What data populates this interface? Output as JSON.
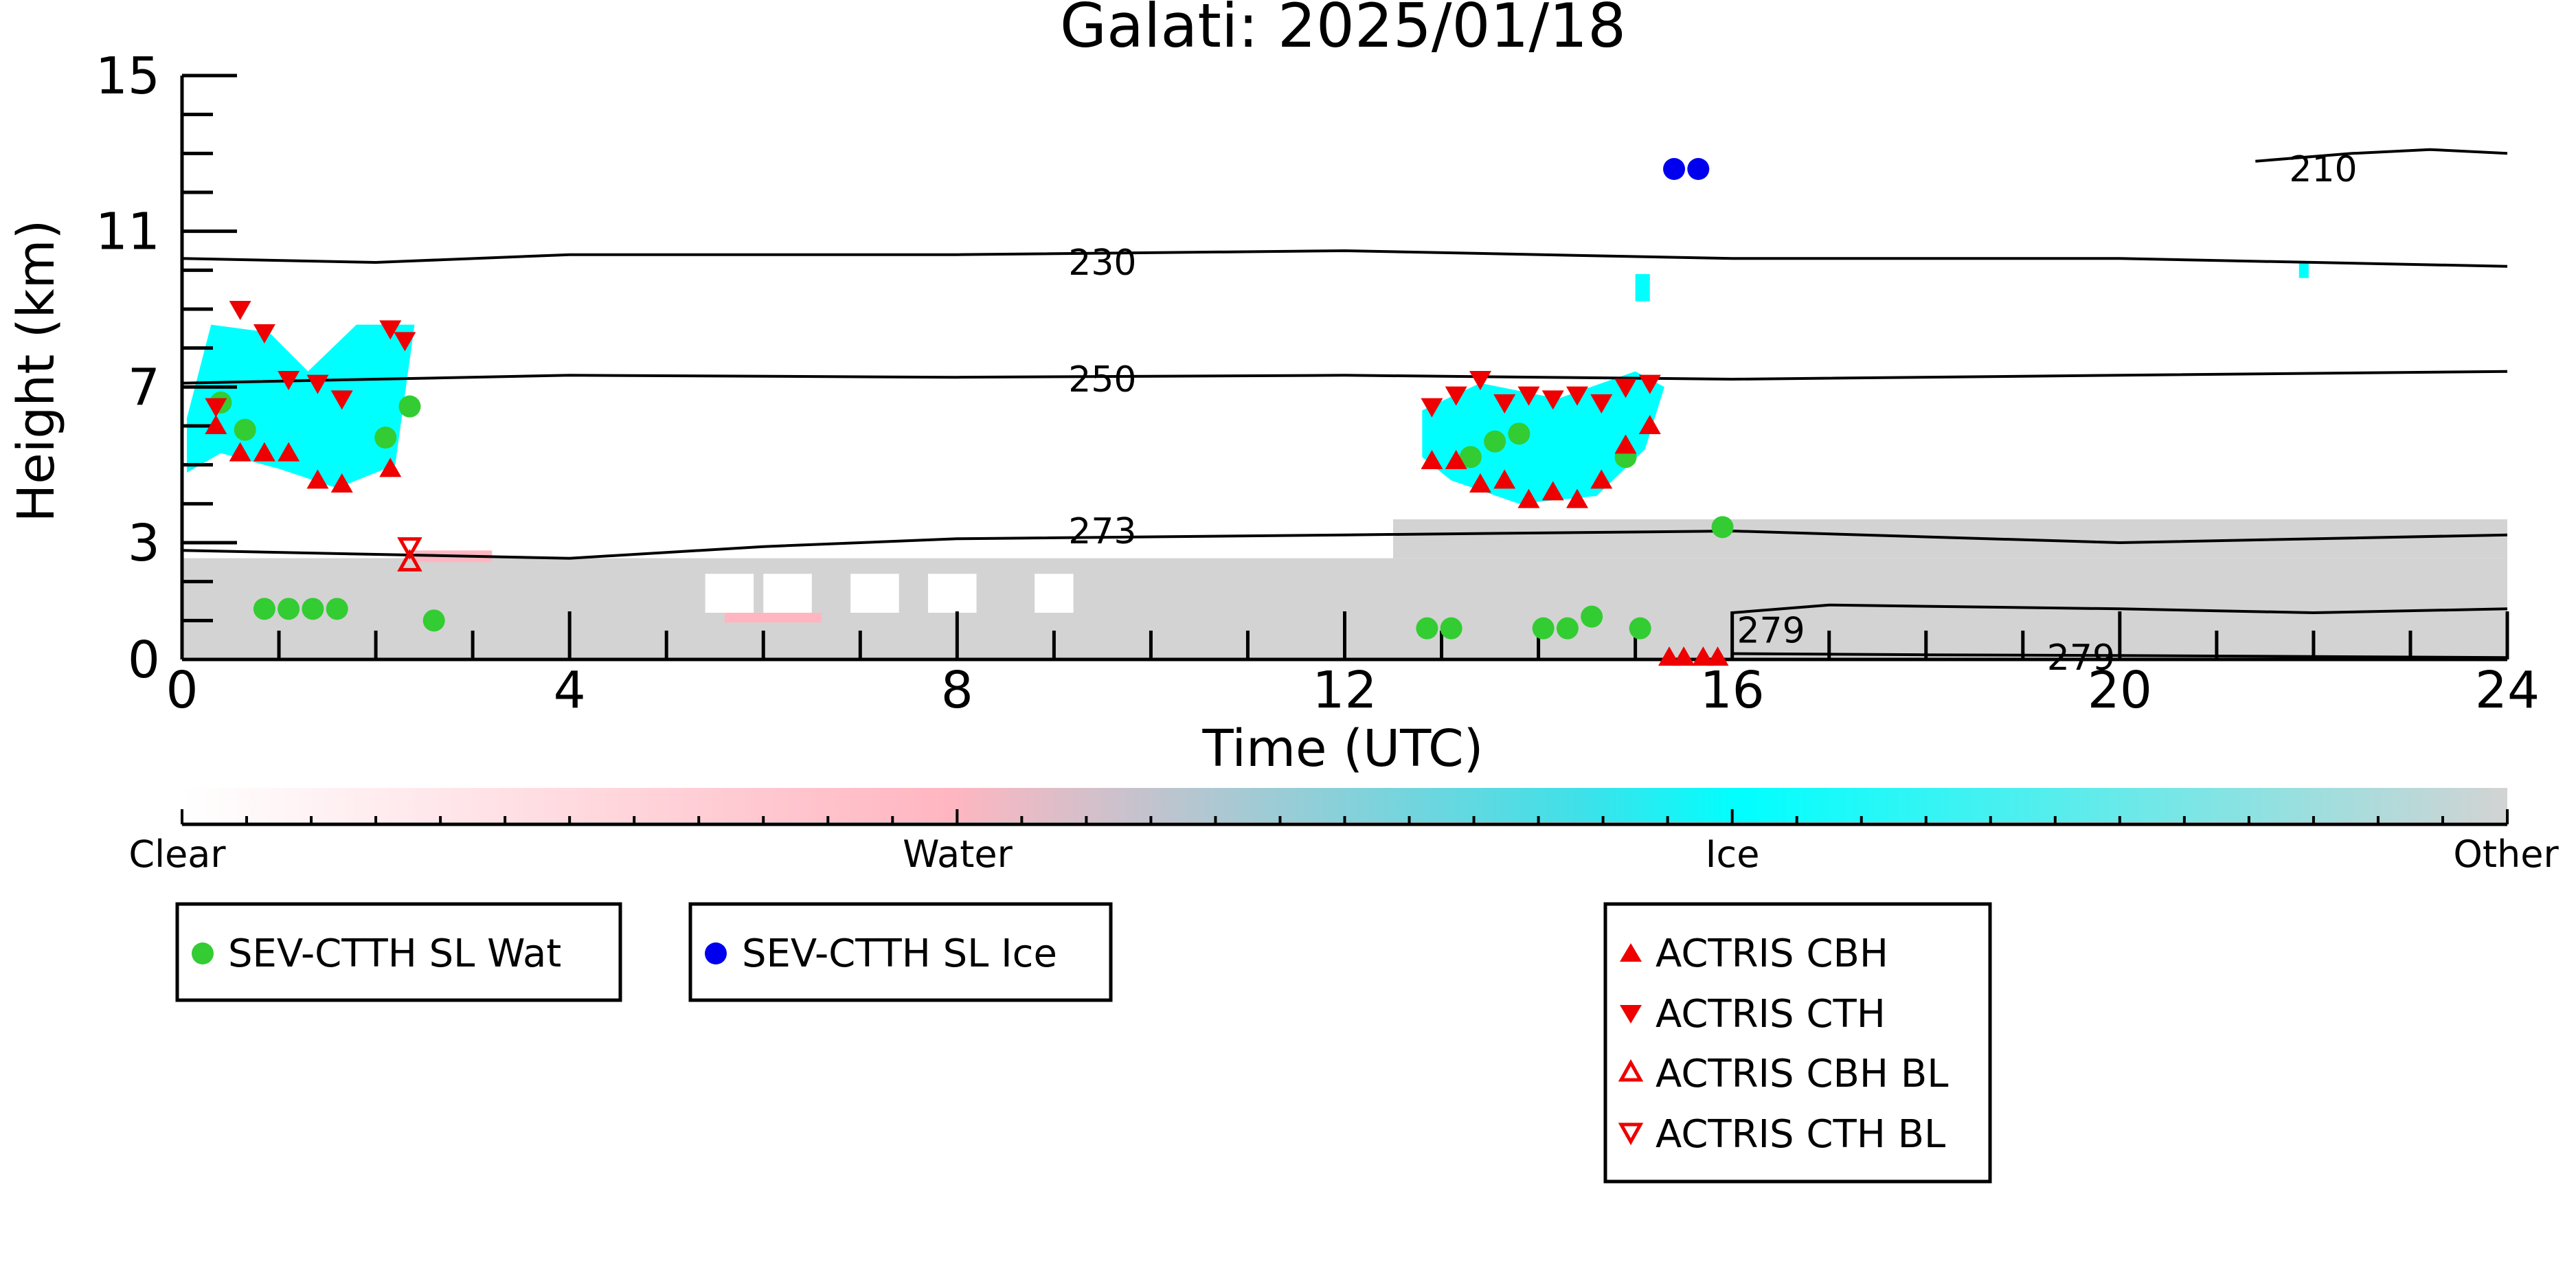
{
  "chart_data": {
    "type": "scatter",
    "title": "Galati: 2025/01/18",
    "xlabel": "Time (UTC)",
    "ylabel": "Height (km)",
    "xlim": [
      0,
      24
    ],
    "ylim": [
      0,
      15
    ],
    "xticks": [
      0,
      4,
      8,
      12,
      16,
      20,
      24
    ],
    "yticks": [
      0,
      3,
      7,
      11,
      15
    ],
    "grid": false,
    "colorbar": {
      "labels": [
        "Clear",
        "Water",
        "Ice",
        "Other"
      ],
      "colors": [
        "#ffffff",
        "#ffb6c1",
        "#00ffff",
        "#d3d3d3"
      ]
    },
    "isotherms": [
      {
        "label": "210",
        "label_x": 22.1,
        "label_y": 12.6,
        "points": [
          [
            21.4,
            12.8
          ],
          [
            22.4,
            13.0
          ],
          [
            23.2,
            13.1
          ],
          [
            24,
            13.0
          ]
        ]
      },
      {
        "label": "230",
        "label_x": 9.5,
        "label_y": 10.2,
        "points": [
          [
            0,
            10.3
          ],
          [
            2,
            10.2
          ],
          [
            4,
            10.4
          ],
          [
            8,
            10.4
          ],
          [
            12,
            10.5
          ],
          [
            16,
            10.3
          ],
          [
            20,
            10.3
          ],
          [
            24,
            10.1
          ]
        ]
      },
      {
        "label": "250",
        "label_x": 9.5,
        "label_y": 7.2,
        "points": [
          [
            0,
            7.1
          ],
          [
            4,
            7.3
          ],
          [
            8,
            7.25
          ],
          [
            12,
            7.3
          ],
          [
            16,
            7.2
          ],
          [
            20,
            7.3
          ],
          [
            24,
            7.4
          ]
        ]
      },
      {
        "label": "273",
        "label_x": 9.5,
        "label_y": 3.3,
        "points": [
          [
            0,
            2.8
          ],
          [
            2,
            2.7
          ],
          [
            4,
            2.6
          ],
          [
            6,
            2.9
          ],
          [
            8,
            3.1
          ],
          [
            12,
            3.2
          ],
          [
            16,
            3.3
          ],
          [
            20,
            3.0
          ],
          [
            24,
            3.2
          ]
        ]
      },
      {
        "label": "279",
        "label_x": 16.4,
        "label_y": 0.75,
        "points": [
          [
            16,
            1.2
          ],
          [
            17,
            1.4
          ],
          [
            20,
            1.3
          ],
          [
            22,
            1.2
          ],
          [
            24,
            1.3
          ]
        ]
      },
      {
        "label": "279",
        "label_x": 19.6,
        "label_y": 0.05,
        "points": [
          [
            16,
            0.15
          ],
          [
            18,
            0.12
          ],
          [
            20,
            0.1
          ],
          [
            24,
            0.05
          ]
        ]
      }
    ],
    "series": [
      {
        "name": "SEV-CTTH SL Wat",
        "marker": "circle",
        "color": "#33cc33",
        "x": [
          0.4,
          0.65,
          2.1,
          2.35,
          0.85,
          1.1,
          1.35,
          1.6,
          2.6,
          12.85,
          13.1,
          13.3,
          13.55,
          13.8,
          14.05,
          14.3,
          14.55,
          14.9,
          15.05,
          15.9
        ],
        "y": [
          6.6,
          5.9,
          5.7,
          6.5,
          1.3,
          1.3,
          1.3,
          1.3,
          1.0,
          0.8,
          0.8,
          5.2,
          5.6,
          5.8,
          0.8,
          0.8,
          1.1,
          5.2,
          0.8,
          3.4
        ]
      },
      {
        "name": "SEV-CTTH SL Ice",
        "marker": "circle",
        "color": "#0000ee",
        "x": [
          15.4,
          15.65
        ],
        "y": [
          12.6,
          12.6
        ]
      },
      {
        "name": "ACTRIS CBH",
        "marker": "triangle-up",
        "color": "#ee0000",
        "x": [
          0.35,
          0.6,
          0.85,
          1.1,
          1.4,
          1.65,
          2.15,
          12.9,
          13.15,
          13.4,
          13.65,
          13.9,
          14.15,
          14.4,
          14.65,
          14.9,
          15.15,
          15.35,
          15.5,
          15.7,
          15.85
        ],
        "y": [
          6.0,
          5.3,
          5.3,
          5.3,
          4.6,
          4.5,
          4.9,
          5.1,
          5.1,
          4.5,
          4.6,
          4.1,
          4.3,
          4.1,
          4.6,
          5.5,
          6.0,
          0.05,
          0.05,
          0.05,
          0.05
        ]
      },
      {
        "name": "ACTRIS CTH",
        "marker": "triangle-down",
        "color": "#ee0000",
        "x": [
          0.35,
          0.6,
          0.85,
          1.1,
          1.4,
          1.65,
          2.15,
          2.3,
          12.9,
          13.15,
          13.4,
          13.65,
          13.9,
          14.15,
          14.4,
          14.65,
          14.9,
          15.15
        ],
        "y": [
          6.5,
          9.0,
          8.4,
          7.2,
          7.1,
          6.7,
          8.5,
          8.2,
          6.5,
          6.8,
          7.2,
          6.6,
          6.8,
          6.7,
          6.8,
          6.6,
          7.0,
          7.1
        ]
      },
      {
        "name": "ACTRIS CBH BL",
        "marker": "triangle-up-open",
        "color": "#ee0000",
        "x": [
          2.35
        ],
        "y": [
          2.5
        ]
      },
      {
        "name": "ACTRIS CTH BL",
        "marker": "triangle-down-open",
        "color": "#ee0000",
        "x": [
          2.35
        ],
        "y": [
          2.9
        ]
      }
    ],
    "legends": [
      {
        "entries": [
          "SEV-CTTH SL Wat"
        ]
      },
      {
        "entries": [
          "SEV-CTTH SL Ice"
        ]
      },
      {
        "entries": [
          "ACTRIS CBH",
          "ACTRIS CTH",
          "ACTRIS CBH BL",
          "ACTRIS CTH BL"
        ]
      }
    ]
  }
}
